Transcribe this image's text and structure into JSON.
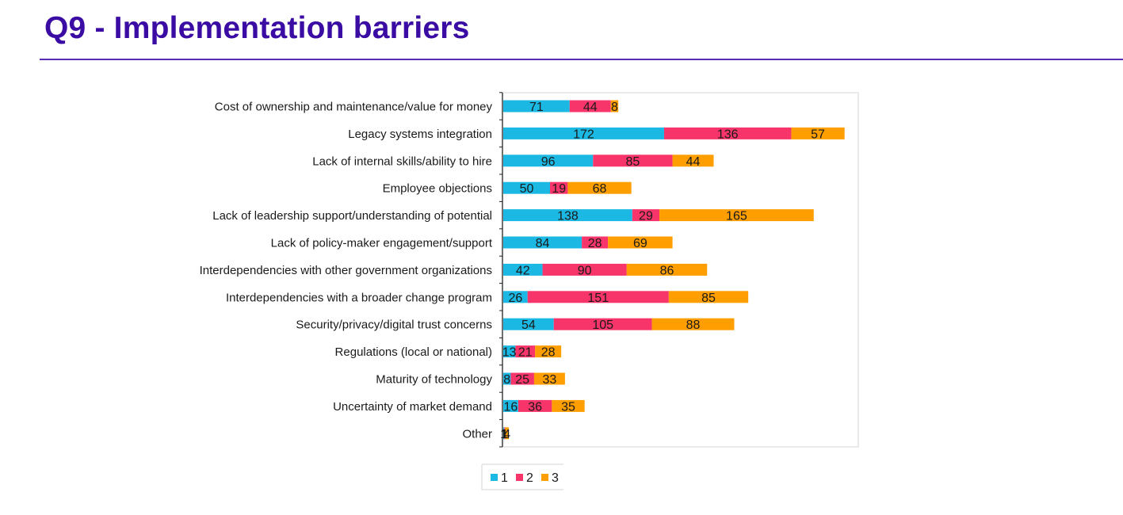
{
  "page": {
    "title": "Q9 - Implementation barriers"
  },
  "colors": {
    "title": "#3a0ca3",
    "rule": "#5b2bb5",
    "series": [
      "#1bb8e4",
      "#f7356a",
      "#ff9e00"
    ]
  },
  "chart_data": {
    "type": "bar",
    "orientation": "horizontal",
    "stacked": true,
    "title": "",
    "xlabel": "",
    "ylabel": "",
    "xlim": [
      0,
      420
    ],
    "grid": false,
    "legend_position": "bottom",
    "categories": [
      "Cost of ownership and maintenance/value for money",
      "Legacy systems integration",
      "Lack of internal skills/ability to hire",
      "Employee objections",
      "Lack of leadership support/understanding of potential",
      "Lack of policy-maker engagement/support",
      "Interdependencies with other government organizations",
      "Interdependencies with a broader change program",
      "Security/privacy/digital trust concerns",
      "Regulations (local or national)",
      "Maturity of technology",
      "Uncertainty of market demand",
      "Other"
    ],
    "series": [
      {
        "name": "1",
        "values": [
          71,
          172,
          96,
          50,
          138,
          84,
          42,
          26,
          54,
          13,
          8,
          16,
          1
        ]
      },
      {
        "name": "2",
        "values": [
          44,
          136,
          85,
          19,
          29,
          28,
          90,
          151,
          105,
          21,
          25,
          36,
          1
        ]
      },
      {
        "name": "3",
        "values": [
          8,
          57,
          44,
          68,
          165,
          69,
          86,
          85,
          88,
          28,
          33,
          35,
          4
        ]
      }
    ]
  }
}
